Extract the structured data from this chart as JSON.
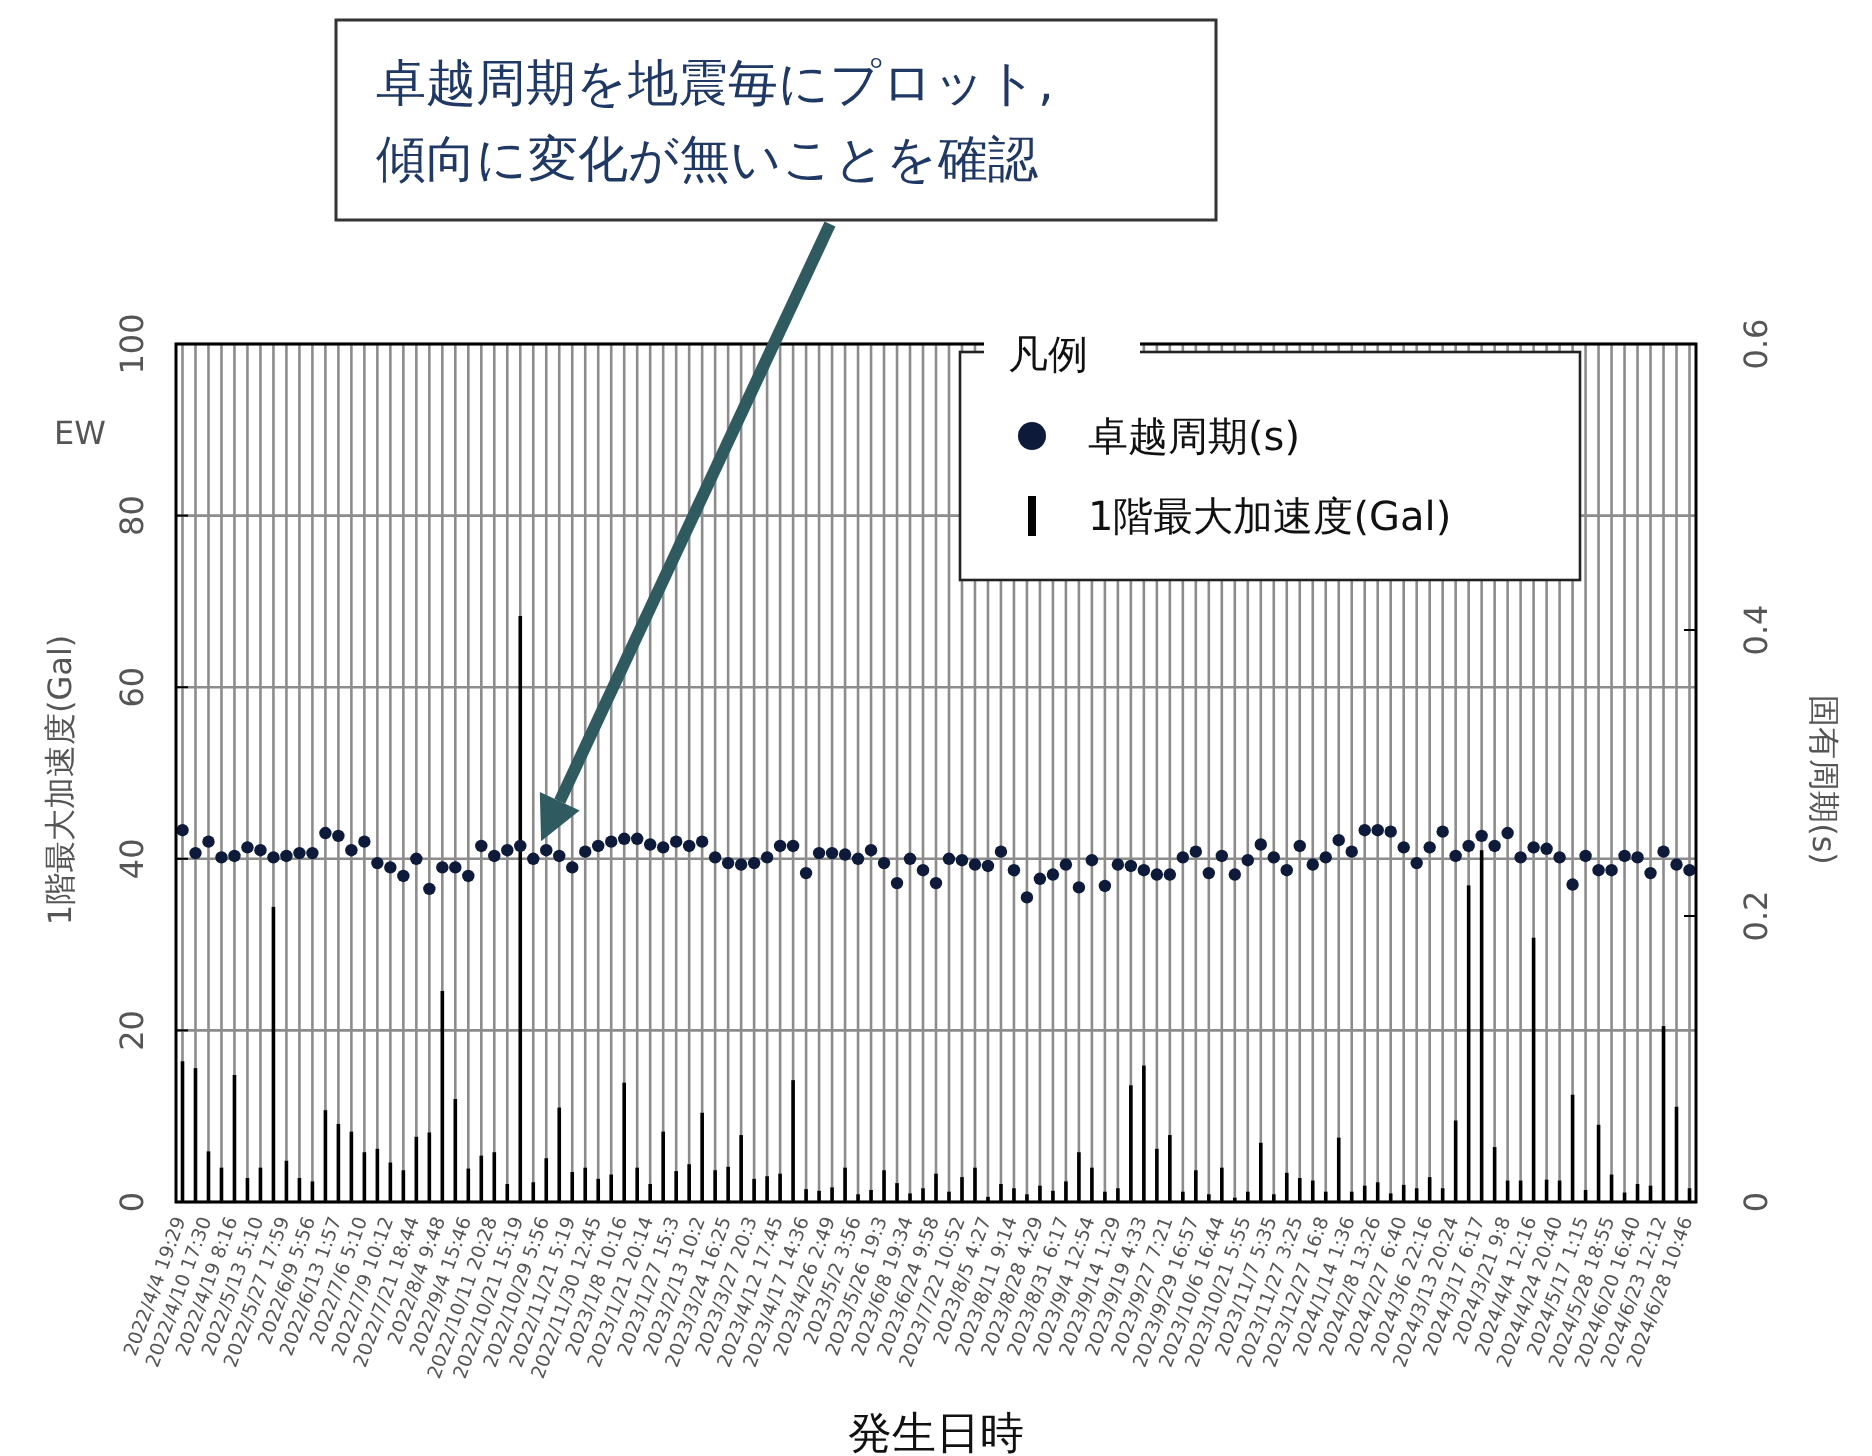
{
  "chart_data": {
    "type": "bar",
    "xlabel": "発生日時",
    "ylabel": "1階最大加速度(Gal)",
    "y2label": "固有周期(s)",
    "legend_title": "凡例",
    "legend": "top right",
    "grid": true,
    "marker": "circle",
    "annotations": [
      "卓越周期を地震毎にプロット,\n傾向に変化が無いことを確認",
      "EW"
    ],
    "ylim": [
      0,
      100
    ],
    "yticks": [
      0,
      20,
      40,
      60,
      80,
      100
    ],
    "y2lim": [
      0,
      0.6
    ],
    "y2ticks": [
      0,
      0.2,
      0.4,
      0.6
    ],
    "categories": [
      "2022/4/4 19:29",
      null,
      "2022/4/10 17:30",
      null,
      "2022/4/19 8:16",
      null,
      "2022/5/13 5:10",
      null,
      "2022/5/27 17:59",
      null,
      "2022/6/9 5:56",
      null,
      "2022/6/13 1:57",
      null,
      "2022/7/6 5:10",
      null,
      "2022/7/9 10:12",
      null,
      "2022/7/21 18:44",
      null,
      "2022/8/4 9:48",
      null,
      "2022/9/4 15:46",
      null,
      "2022/10/11 20:28",
      null,
      "2022/10/21 15:19",
      null,
      "2022/10/29 5:56",
      null,
      "2022/11/21 5:19",
      null,
      "2022/11/30 12:45",
      null,
      "2023/1/8 10:16",
      null,
      "2023/1/21 20:14",
      null,
      "2023/1/27 15:3",
      null,
      "2023/2/13 10:2",
      null,
      "2023/3/24 16:25",
      null,
      "2023/3/27 20:3",
      null,
      "2023/4/12 17:45",
      null,
      "2023/4/17 14:36",
      null,
      "2023/4/26 2:49",
      null,
      "2023/5/2 3:56",
      null,
      "2023/5/26 19:3",
      null,
      "2023/6/8 19:34",
      null,
      "2023/6/24 9:58",
      null,
      "2023/7/22 10:52",
      null,
      "2023/8/5 4:27",
      null,
      "2023/8/11 9:14",
      null,
      "2023/8/28 4:29",
      null,
      "2023/8/31 6:17",
      null,
      "2023/9/4 12:54",
      null,
      "2023/9/14 1:29",
      null,
      "2023/9/19 4:33",
      null,
      "2023/9/27 7:21",
      null,
      "2023/9/29 16:57",
      null,
      "2023/10/6 16:44",
      null,
      "2023/10/21 5:55",
      null,
      "2023/11/7 5:35",
      null,
      "2023/11/27 3:25",
      null,
      "2023/12/27 16:8",
      null,
      "2024/1/14 1:36",
      null,
      "2024/2/8 13:26",
      null,
      "2024/2/27 6:40",
      null,
      "2024/3/6 22:16",
      null,
      "2024/3/13 20:24",
      null,
      "2024/3/17 6:17",
      null,
      "2024/3/21 9:8",
      null,
      "2024/4/4 12:16",
      null,
      "2024/4/24 20:40",
      null,
      "2024/5/17 1:15",
      null,
      "2024/5/28 18:55",
      null,
      "2024/6/20 16:40",
      null,
      "2024/6/23 12:12",
      null,
      "2024/6/28 10:46"
    ],
    "series": [
      {
        "name": "卓越周期(s)",
        "type": "scatter",
        "axis": "y2",
        "color": "#0d1a3a",
        "values": [
          0.26,
          0.244,
          0.252,
          0.241,
          0.242,
          0.248,
          0.246,
          0.241,
          0.242,
          0.244,
          0.244,
          0.258,
          0.256,
          0.246,
          0.252,
          0.237,
          0.234,
          0.228,
          0.24,
          0.219,
          0.234,
          0.234,
          0.228,
          0.249,
          0.242,
          0.246,
          0.249,
          0.24,
          0.246,
          0.242,
          0.234,
          0.245,
          0.249,
          0.252,
          0.254,
          0.254,
          0.25,
          0.248,
          0.252,
          0.249,
          0.252,
          0.241,
          0.237,
          0.236,
          0.237,
          0.241,
          0.249,
          0.249,
          0.23,
          0.244,
          0.244,
          0.243,
          0.24,
          0.246,
          0.237,
          0.223,
          0.24,
          0.232,
          0.223,
          0.24,
          0.239,
          0.236,
          0.235,
          0.245,
          0.232,
          0.213,
          0.226,
          0.229,
          0.236,
          0.22,
          0.239,
          0.221,
          0.236,
          0.235,
          0.232,
          0.229,
          0.229,
          0.241,
          0.245,
          0.23,
          0.242,
          0.229,
          0.239,
          0.25,
          0.241,
          0.232,
          0.249,
          0.236,
          0.241,
          0.253,
          0.245,
          0.26,
          0.26,
          0.259,
          0.248,
          0.237,
          0.248,
          0.259,
          0.242,
          0.249,
          0.256,
          0.249,
          0.258,
          0.241,
          0.248,
          0.247,
          0.241,
          0.222,
          0.242,
          0.232,
          0.232,
          0.242,
          0.241,
          0.23,
          0.245,
          0.236,
          0.232
        ]
      },
      {
        "name": "1階最大加速度(Gal)",
        "color": "#000000",
        "values": [
          16.4,
          15.6,
          5.9,
          4.0,
          14.8,
          2.8,
          4.0,
          34.4,
          4.8,
          2.8,
          2.4,
          10.7,
          9.1,
          8.2,
          5.8,
          6.2,
          4.6,
          3.7,
          7.6,
          8.1,
          24.6,
          12.0,
          3.9,
          5.4,
          5.8,
          2.1,
          68.3,
          2.3,
          5.1,
          11.0,
          3.5,
          4.0,
          2.7,
          3.2,
          13.9,
          4.0,
          2.1,
          8.2,
          3.6,
          4.4,
          10.4,
          3.7,
          4.1,
          7.8,
          2.7,
          3.0,
          3.3,
          14.2,
          1.5,
          1.3,
          1.7,
          4.0,
          0.9,
          1.4,
          3.7,
          2.2,
          1.0,
          1.6,
          3.3,
          1.2,
          2.9,
          4.0,
          0.6,
          2.1,
          1.6,
          0.9,
          1.9,
          1.3,
          2.4,
          5.8,
          4.0,
          1.2,
          1.6,
          13.6,
          15.9,
          6.2,
          7.8,
          1.2,
          3.7,
          0.9,
          4.0,
          0.5,
          1.2,
          6.9,
          0.9,
          3.4,
          2.8,
          2.5,
          1.2,
          7.5,
          1.2,
          1.9,
          2.3,
          1.0,
          2.0,
          1.6,
          2.9,
          1.6,
          9.5,
          36.9,
          41.0,
          6.4,
          2.5,
          2.5,
          30.8,
          2.6,
          2.5,
          12.5,
          1.4,
          9.0,
          3.2,
          1.1,
          2.1,
          1.9,
          20.5,
          11.1,
          1.6
        ]
      }
    ]
  }
}
